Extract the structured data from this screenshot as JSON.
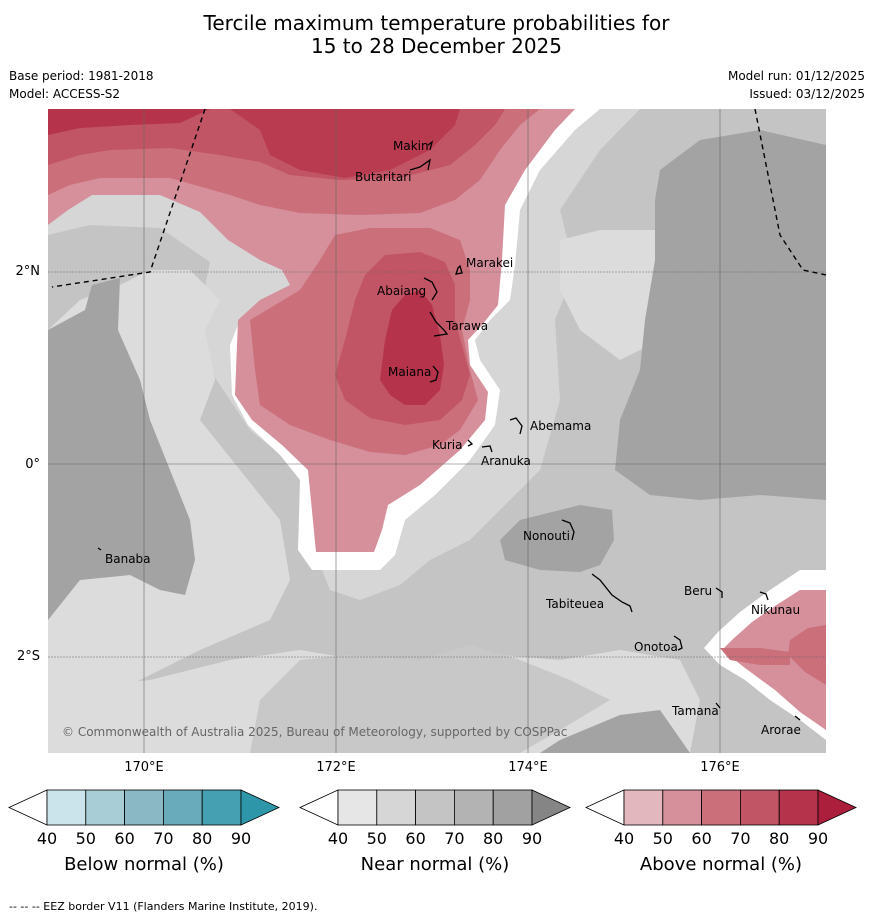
{
  "title": {
    "line1": "Tercile maximum temperature probabilities for",
    "line2": "15 to 28 December 2025"
  },
  "meta": {
    "base_period": "Base period: 1981-2018",
    "model": "Model: ACCESS-S2",
    "model_run": "Model run: 01/12/2025",
    "issued": "Issued: 03/12/2025"
  },
  "map": {
    "lat_labels": [
      "2°N",
      "0°",
      "2°S"
    ],
    "lon_labels": [
      "170°E",
      "172°E",
      "174°E",
      "176°E"
    ],
    "places": [
      "Makin",
      "Butaritari",
      "Marakei",
      "Abaiang",
      "Tarawa",
      "Maiana",
      "Abemama",
      "Kuria",
      "Aranuka",
      "Nonouti",
      "Banaba",
      "Tabiteuea",
      "Beru",
      "Nikunau",
      "Onotoa",
      "Tamana",
      "Arorae"
    ],
    "copyright": "© Commonwealth of Australia 2025, Bureau of Meteorology, supported by COSPPac"
  },
  "colorbars": [
    {
      "title": "Below normal (%)",
      "ticks": [
        "40",
        "50",
        "60",
        "70",
        "80",
        "90"
      ],
      "colors": [
        "#ffffff",
        "#cbe3ea",
        "#a8cdd6",
        "#8ab9c5",
        "#6aabbb",
        "#45a1b2",
        "#2e96a9"
      ]
    },
    {
      "title": "Near normal (%)",
      "ticks": [
        "40",
        "50",
        "60",
        "70",
        "80",
        "90"
      ],
      "colors": [
        "#ffffff",
        "#e6e6e6",
        "#d6d6d6",
        "#c4c4c4",
        "#b3b3b3",
        "#a1a1a1",
        "#858585"
      ]
    },
    {
      "title": "Above normal (%)",
      "ticks": [
        "40",
        "50",
        "60",
        "70",
        "80",
        "90"
      ],
      "colors": [
        "#ffffff",
        "#e3b7be",
        "#d5909b",
        "#cb6f7b",
        "#c15565",
        "#b5344b",
        "#ab1f3c"
      ]
    }
  ],
  "footer": "--  --  -- EEZ border V11 (Flanders Marine Institute, 2019)."
}
